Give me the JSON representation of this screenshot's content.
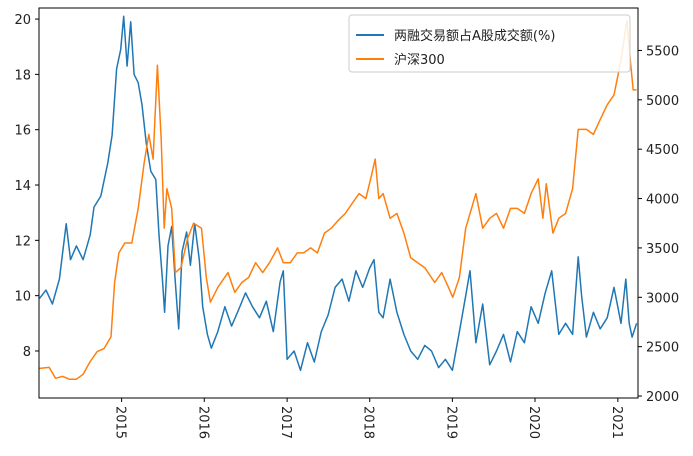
{
  "chart_data": {
    "type": "line",
    "grid": false,
    "legend_position": "top-right",
    "x_range": [
      "2014-01-01",
      "2021-03-31"
    ],
    "x_ticks": [
      "2015",
      "2016",
      "2017",
      "2018",
      "2019",
      "2020",
      "2021"
    ],
    "left_axis": {
      "range": [
        6.3,
        20.4
      ],
      "ticks": [
        "8",
        "10",
        "12",
        "14",
        "16",
        "18",
        "20"
      ]
    },
    "right_axis": {
      "range": [
        1980,
        5930
      ],
      "ticks": [
        "2000",
        "2500",
        "3000",
        "3500",
        "4000",
        "4500",
        "5000",
        "5500"
      ]
    },
    "series": [
      {
        "name": "两融交易额占A股成交额(%)",
        "axis": "left",
        "color": "#1f77b4",
        "points": [
          [
            "2014-01-03",
            9.9
          ],
          [
            "2014-02-01",
            10.2
          ],
          [
            "2014-03-01",
            9.7
          ],
          [
            "2014-04-01",
            10.6
          ],
          [
            "2014-05-01",
            12.6
          ],
          [
            "2014-05-20",
            11.3
          ],
          [
            "2014-06-15",
            11.8
          ],
          [
            "2014-07-15",
            11.3
          ],
          [
            "2014-08-15",
            12.2
          ],
          [
            "2014-09-01",
            13.2
          ],
          [
            "2014-10-01",
            13.6
          ],
          [
            "2014-11-01",
            14.8
          ],
          [
            "2014-11-20",
            15.8
          ],
          [
            "2014-12-10",
            18.2
          ],
          [
            "2014-12-28",
            18.9
          ],
          [
            "2015-01-10",
            20.1
          ],
          [
            "2015-01-25",
            18.3
          ],
          [
            "2015-02-10",
            19.9
          ],
          [
            "2015-02-25",
            18.0
          ],
          [
            "2015-03-15",
            17.7
          ],
          [
            "2015-04-01",
            16.9
          ],
          [
            "2015-04-20",
            15.5
          ],
          [
            "2015-05-10",
            14.5
          ],
          [
            "2015-06-01",
            14.2
          ],
          [
            "2015-06-15",
            12.2
          ],
          [
            "2015-07-01",
            10.5
          ],
          [
            "2015-07-10",
            9.4
          ],
          [
            "2015-07-25",
            11.8
          ],
          [
            "2015-08-10",
            12.5
          ],
          [
            "2015-08-25",
            10.6
          ],
          [
            "2015-09-10",
            8.8
          ],
          [
            "2015-09-25",
            11.6
          ],
          [
            "2015-10-15",
            12.3
          ],
          [
            "2015-11-01",
            11.1
          ],
          [
            "2015-11-20",
            12.6
          ],
          [
            "2015-12-10",
            11.3
          ],
          [
            "2015-12-25",
            9.6
          ],
          [
            "2016-01-15",
            8.6
          ],
          [
            "2016-02-01",
            8.1
          ],
          [
            "2016-03-01",
            8.7
          ],
          [
            "2016-04-01",
            9.6
          ],
          [
            "2016-05-01",
            8.9
          ],
          [
            "2016-06-01",
            9.5
          ],
          [
            "2016-07-01",
            10.1
          ],
          [
            "2016-08-01",
            9.6
          ],
          [
            "2016-09-01",
            9.2
          ],
          [
            "2016-10-01",
            9.8
          ],
          [
            "2016-11-01",
            8.7
          ],
          [
            "2016-12-01",
            10.5
          ],
          [
            "2016-12-15",
            10.9
          ],
          [
            "2017-01-01",
            7.7
          ],
          [
            "2017-02-01",
            8.0
          ],
          [
            "2017-03-01",
            7.3
          ],
          [
            "2017-04-01",
            8.3
          ],
          [
            "2017-05-01",
            7.6
          ],
          [
            "2017-06-01",
            8.7
          ],
          [
            "2017-07-01",
            9.3
          ],
          [
            "2017-08-01",
            10.3
          ],
          [
            "2017-09-01",
            10.6
          ],
          [
            "2017-10-01",
            9.8
          ],
          [
            "2017-11-01",
            10.9
          ],
          [
            "2017-12-01",
            10.3
          ],
          [
            "2018-01-01",
            11.0
          ],
          [
            "2018-01-20",
            11.3
          ],
          [
            "2018-02-10",
            9.4
          ],
          [
            "2018-03-01",
            9.2
          ],
          [
            "2018-04-01",
            10.6
          ],
          [
            "2018-05-01",
            9.4
          ],
          [
            "2018-06-01",
            8.6
          ],
          [
            "2018-07-01",
            8.0
          ],
          [
            "2018-08-01",
            7.7
          ],
          [
            "2018-09-01",
            8.2
          ],
          [
            "2018-10-01",
            8.0
          ],
          [
            "2018-11-01",
            7.4
          ],
          [
            "2018-12-01",
            7.7
          ],
          [
            "2019-01-01",
            7.3
          ],
          [
            "2019-02-01",
            8.7
          ],
          [
            "2019-03-01",
            10.0
          ],
          [
            "2019-03-20",
            10.9
          ],
          [
            "2019-04-15",
            8.3
          ],
          [
            "2019-05-15",
            9.7
          ],
          [
            "2019-06-15",
            7.5
          ],
          [
            "2019-07-15",
            8.0
          ],
          [
            "2019-08-15",
            8.6
          ],
          [
            "2019-09-15",
            7.6
          ],
          [
            "2019-10-15",
            8.7
          ],
          [
            "2019-11-15",
            8.3
          ],
          [
            "2019-12-15",
            9.6
          ],
          [
            "2020-01-15",
            9.0
          ],
          [
            "2020-02-15",
            10.1
          ],
          [
            "2020-03-15",
            10.9
          ],
          [
            "2020-04-15",
            8.6
          ],
          [
            "2020-05-15",
            9.0
          ],
          [
            "2020-06-15",
            8.6
          ],
          [
            "2020-07-10",
            11.4
          ],
          [
            "2020-07-25",
            10.0
          ],
          [
            "2020-08-15",
            8.5
          ],
          [
            "2020-09-15",
            9.4
          ],
          [
            "2020-10-15",
            8.8
          ],
          [
            "2020-11-15",
            9.2
          ],
          [
            "2020-12-15",
            10.3
          ],
          [
            "2021-01-15",
            9.0
          ],
          [
            "2021-02-05",
            10.6
          ],
          [
            "2021-02-20",
            9.0
          ],
          [
            "2021-03-05",
            8.5
          ],
          [
            "2021-03-25",
            9.0
          ]
        ]
      },
      {
        "name": "沪深300",
        "axis": "right",
        "color": "#ff7f0e",
        "points": [
          [
            "2014-01-03",
            2280
          ],
          [
            "2014-02-15",
            2290
          ],
          [
            "2014-03-15",
            2180
          ],
          [
            "2014-04-15",
            2200
          ],
          [
            "2014-05-15",
            2170
          ],
          [
            "2014-06-15",
            2170
          ],
          [
            "2014-07-15",
            2220
          ],
          [
            "2014-08-15",
            2350
          ],
          [
            "2014-09-15",
            2450
          ],
          [
            "2014-10-15",
            2480
          ],
          [
            "2014-11-15",
            2600
          ],
          [
            "2014-12-01",
            3150
          ],
          [
            "2014-12-20",
            3450
          ],
          [
            "2015-01-15",
            3550
          ],
          [
            "2015-02-15",
            3550
          ],
          [
            "2015-03-15",
            3900
          ],
          [
            "2015-04-10",
            4350
          ],
          [
            "2015-05-01",
            4650
          ],
          [
            "2015-05-20",
            4400
          ],
          [
            "2015-06-08",
            5350
          ],
          [
            "2015-06-25",
            4600
          ],
          [
            "2015-07-08",
            3700
          ],
          [
            "2015-07-20",
            4100
          ],
          [
            "2015-08-10",
            3900
          ],
          [
            "2015-08-26",
            3250
          ],
          [
            "2015-09-20",
            3300
          ],
          [
            "2015-10-20",
            3600
          ],
          [
            "2015-11-15",
            3750
          ],
          [
            "2015-12-20",
            3700
          ],
          [
            "2016-01-10",
            3200
          ],
          [
            "2016-01-28",
            2950
          ],
          [
            "2016-03-01",
            3100
          ],
          [
            "2016-04-15",
            3250
          ],
          [
            "2016-05-15",
            3050
          ],
          [
            "2016-06-15",
            3150
          ],
          [
            "2016-07-15",
            3200
          ],
          [
            "2016-08-15",
            3350
          ],
          [
            "2016-09-15",
            3250
          ],
          [
            "2016-10-15",
            3350
          ],
          [
            "2016-11-20",
            3500
          ],
          [
            "2016-12-15",
            3350
          ],
          [
            "2017-01-15",
            3350
          ],
          [
            "2017-02-15",
            3450
          ],
          [
            "2017-03-15",
            3450
          ],
          [
            "2017-04-15",
            3500
          ],
          [
            "2017-05-15",
            3450
          ],
          [
            "2017-06-15",
            3650
          ],
          [
            "2017-07-15",
            3700
          ],
          [
            "2017-08-15",
            3780
          ],
          [
            "2017-09-15",
            3850
          ],
          [
            "2017-10-15",
            3950
          ],
          [
            "2017-11-15",
            4050
          ],
          [
            "2017-12-15",
            4000
          ],
          [
            "2018-01-10",
            4250
          ],
          [
            "2018-01-25",
            4400
          ],
          [
            "2018-02-10",
            4000
          ],
          [
            "2018-03-01",
            4050
          ],
          [
            "2018-04-01",
            3800
          ],
          [
            "2018-05-01",
            3850
          ],
          [
            "2018-06-01",
            3650
          ],
          [
            "2018-07-01",
            3400
          ],
          [
            "2018-08-01",
            3350
          ],
          [
            "2018-09-01",
            3300
          ],
          [
            "2018-10-15",
            3150
          ],
          [
            "2018-11-15",
            3250
          ],
          [
            "2018-12-15",
            3100
          ],
          [
            "2019-01-03",
            3000
          ],
          [
            "2019-02-01",
            3200
          ],
          [
            "2019-03-01",
            3700
          ],
          [
            "2019-04-15",
            4050
          ],
          [
            "2019-05-15",
            3700
          ],
          [
            "2019-06-15",
            3800
          ],
          [
            "2019-07-15",
            3850
          ],
          [
            "2019-08-15",
            3700
          ],
          [
            "2019-09-15",
            3900
          ],
          [
            "2019-10-15",
            3900
          ],
          [
            "2019-11-15",
            3850
          ],
          [
            "2019-12-15",
            4050
          ],
          [
            "2020-01-15",
            4200
          ],
          [
            "2020-02-05",
            3800
          ],
          [
            "2020-02-20",
            4150
          ],
          [
            "2020-03-20",
            3650
          ],
          [
            "2020-04-15",
            3800
          ],
          [
            "2020-05-15",
            3850
          ],
          [
            "2020-06-15",
            4100
          ],
          [
            "2020-07-10",
            4700
          ],
          [
            "2020-08-15",
            4700
          ],
          [
            "2020-09-15",
            4650
          ],
          [
            "2020-10-15",
            4800
          ],
          [
            "2020-11-15",
            4950
          ],
          [
            "2020-12-15",
            5050
          ],
          [
            "2021-01-15",
            5400
          ],
          [
            "2021-02-10",
            5800
          ],
          [
            "2021-02-25",
            5400
          ],
          [
            "2021-03-10",
            5100
          ],
          [
            "2021-03-25",
            5100
          ]
        ]
      }
    ]
  }
}
